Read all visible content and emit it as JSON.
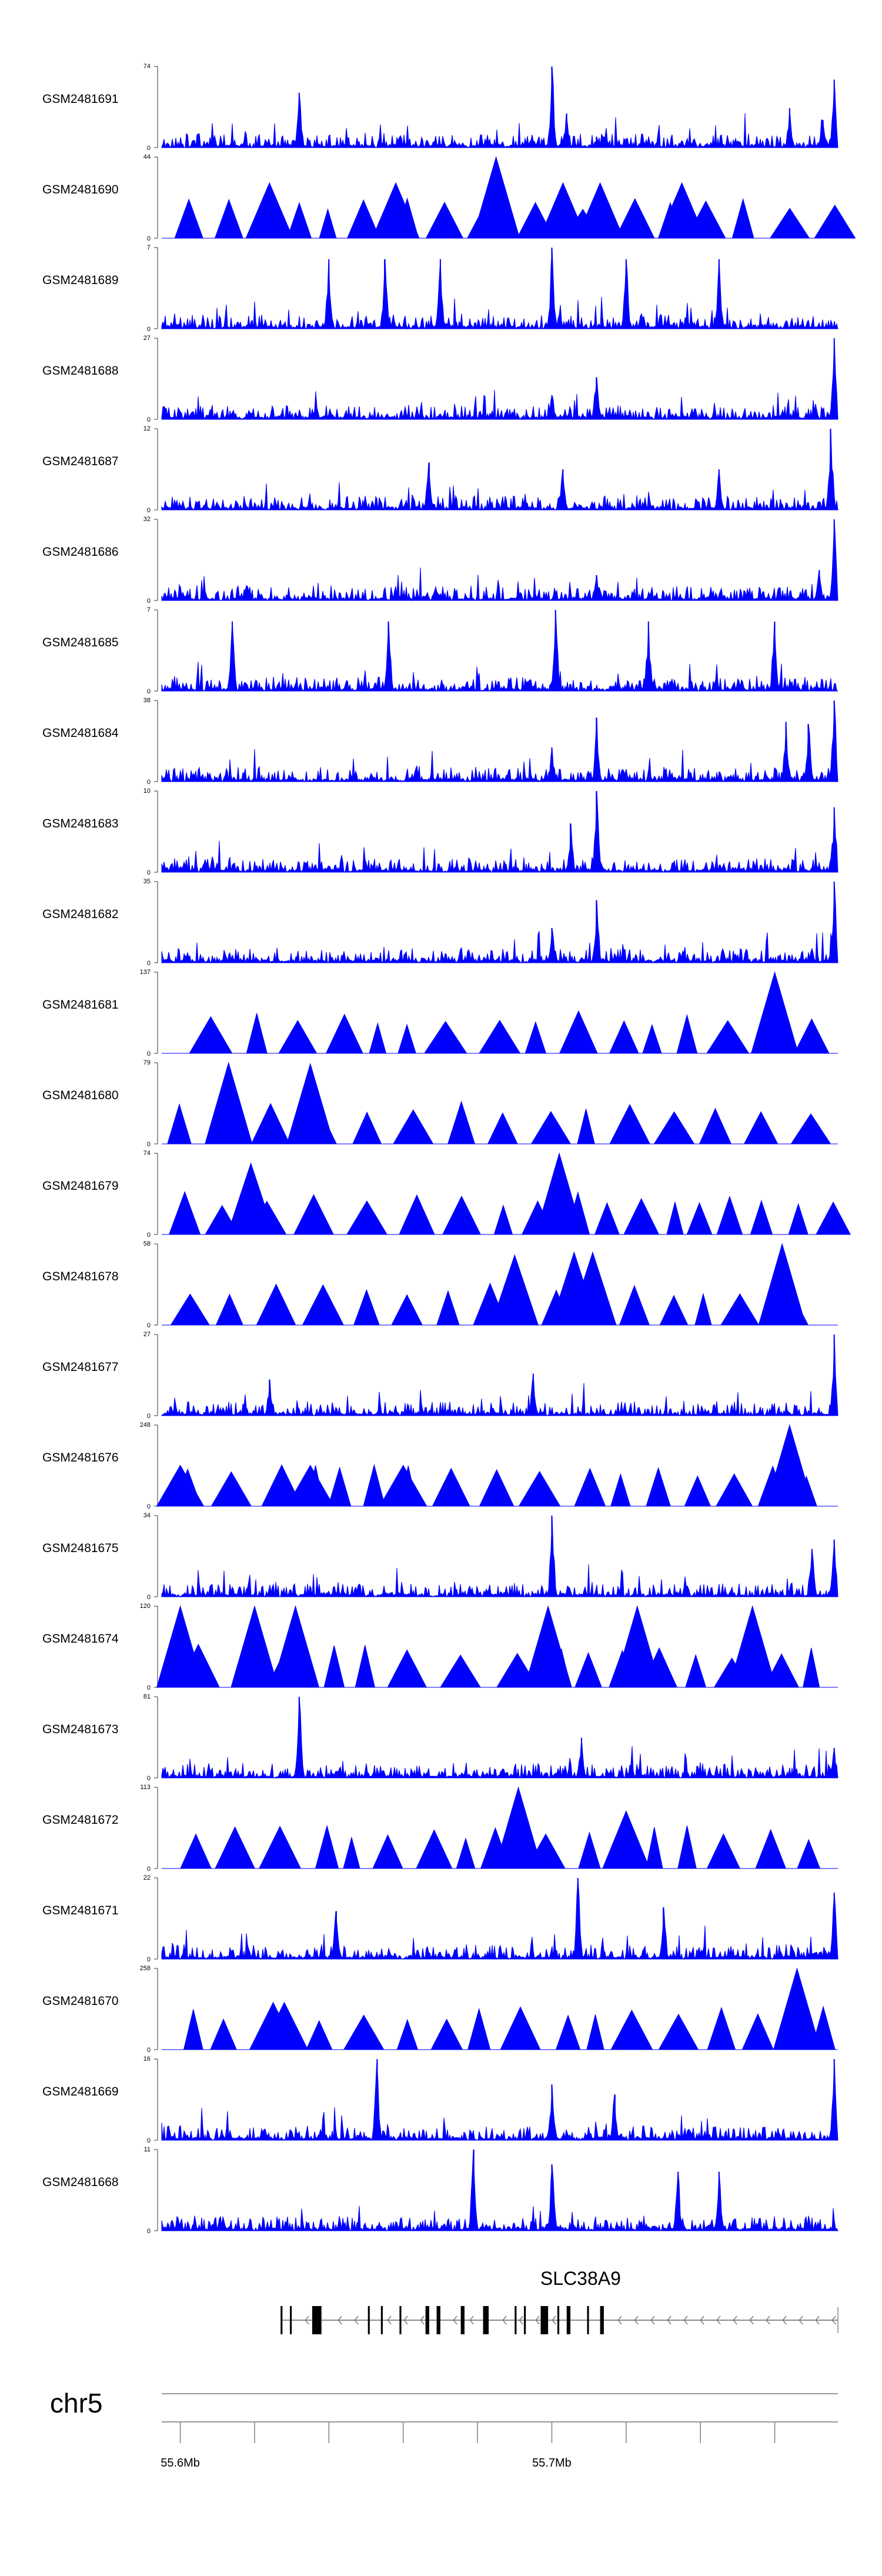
{
  "chart_data": {
    "type": "area",
    "tracks": [
      {
        "name": "GSM2481691",
        "ymax": 74,
        "style": "signal",
        "peaks": [
          [
            55.604,
            3
          ],
          [
            55.625,
            3
          ],
          [
            55.632,
            50
          ],
          [
            55.668,
            5
          ],
          [
            55.674,
            4
          ],
          [
            55.7,
            74
          ],
          [
            55.704,
            31
          ],
          [
            55.712,
            10
          ],
          [
            55.72,
            8
          ],
          [
            55.735,
            4
          ],
          [
            55.75,
            6
          ],
          [
            55.764,
            36
          ],
          [
            55.773,
            25
          ],
          [
            55.776,
            62
          ]
        ]
      },
      {
        "name": "GSM2481690",
        "ymax": 44,
        "style": "triangles",
        "peaks": [
          [
            55.624,
            30
          ],
          [
            55.658,
            30
          ],
          [
            55.685,
            44
          ],
          [
            55.703,
            30
          ],
          [
            55.713,
            30
          ],
          [
            55.735,
            30
          ]
        ]
      },
      {
        "name": "GSM2481689",
        "ymax": 7,
        "style": "signal",
        "peaks": [
          [
            55.64,
            6
          ],
          [
            55.655,
            6
          ],
          [
            55.67,
            6
          ],
          [
            55.7,
            7
          ],
          [
            55.72,
            6
          ],
          [
            55.745,
            6
          ]
        ]
      },
      {
        "name": "GSM2481688",
        "ymax": 27,
        "style": "signal",
        "peaks": [
          [
            55.7,
            8
          ],
          [
            55.712,
            14
          ],
          [
            55.771,
            5
          ],
          [
            55.776,
            27
          ]
        ]
      },
      {
        "name": "GSM2481687",
        "ymax": 12,
        "style": "signal",
        "peaks": [
          [
            55.667,
            7
          ],
          [
            55.703,
            6
          ],
          [
            55.745,
            6
          ],
          [
            55.775,
            12
          ]
        ]
      },
      {
        "name": "GSM2481686",
        "ymax": 32,
        "style": "signal",
        "peaks": [
          [
            55.712,
            10
          ],
          [
            55.772,
            12
          ],
          [
            55.776,
            32
          ]
        ]
      },
      {
        "name": "GSM2481685",
        "ymax": 7,
        "style": "signal",
        "peaks": [
          [
            55.614,
            6
          ],
          [
            55.656,
            6
          ],
          [
            55.701,
            7
          ],
          [
            55.726,
            6
          ],
          [
            55.76,
            6
          ]
        ]
      },
      {
        "name": "GSM2481684",
        "ymax": 38,
        "style": "signal",
        "peaks": [
          [
            55.7,
            16
          ],
          [
            55.712,
            30
          ],
          [
            55.763,
            28
          ],
          [
            55.769,
            27
          ],
          [
            55.776,
            38
          ]
        ]
      },
      {
        "name": "GSM2481683",
        "ymax": 10,
        "style": "signal",
        "peaks": [
          [
            55.705,
            6
          ],
          [
            55.712,
            10
          ],
          [
            55.776,
            8
          ]
        ]
      },
      {
        "name": "GSM2481682",
        "ymax": 35,
        "style": "signal",
        "peaks": [
          [
            55.7,
            15
          ],
          [
            55.712,
            27
          ],
          [
            55.77,
            6
          ],
          [
            55.776,
            35
          ]
        ]
      },
      {
        "name": "GSM2481681",
        "ymax": 137,
        "style": "triangles",
        "peaks": [
          [
            55.76,
            137
          ]
        ]
      },
      {
        "name": "GSM2481680",
        "ymax": 79,
        "style": "triangles",
        "peaks": [
          [
            55.613,
            79
          ],
          [
            55.635,
            78
          ]
        ]
      },
      {
        "name": "GSM2481679",
        "ymax": 74,
        "style": "triangles",
        "peaks": [
          [
            55.619,
            65
          ],
          [
            55.702,
            74
          ]
        ]
      },
      {
        "name": "GSM2481678",
        "ymax": 58,
        "style": "triangles",
        "peaks": [
          [
            55.69,
            50
          ],
          [
            55.706,
            52
          ],
          [
            55.711,
            52
          ],
          [
            55.762,
            58
          ]
        ]
      },
      {
        "name": "GSM2481677",
        "ymax": 27,
        "style": "signal",
        "peaks": [
          [
            55.624,
            12
          ],
          [
            55.695,
            14
          ],
          [
            55.776,
            27
          ]
        ]
      },
      {
        "name": "GSM2481676",
        "ymax": 248,
        "style": "triangles",
        "peaks": [
          [
            55.6,
            125
          ],
          [
            55.635,
            125
          ],
          [
            55.66,
            125
          ],
          [
            55.764,
            248
          ]
        ]
      },
      {
        "name": "GSM2481675",
        "ymax": 34,
        "style": "signal",
        "peaks": [
          [
            55.7,
            34
          ],
          [
            55.77,
            20
          ],
          [
            55.776,
            24
          ]
        ]
      },
      {
        "name": "GSM2481674",
        "ymax": 120,
        "style": "triangles",
        "peaks": [
          [
            55.6,
            120
          ],
          [
            55.62,
            120
          ],
          [
            55.631,
            120
          ],
          [
            55.699,
            120
          ],
          [
            55.723,
            120
          ],
          [
            55.754,
            120
          ]
        ]
      },
      {
        "name": "GSM2481673",
        "ymax": 81,
        "style": "signal",
        "peaks": [
          [
            55.632,
            81
          ],
          [
            55.708,
            40
          ],
          [
            55.776,
            30
          ]
        ]
      },
      {
        "name": "GSM2481672",
        "ymax": 113,
        "style": "triangles",
        "peaks": [
          [
            55.691,
            113
          ],
          [
            55.72,
            80
          ]
        ]
      },
      {
        "name": "GSM2481671",
        "ymax": 22,
        "style": "signal",
        "peaks": [
          [
            55.642,
            13
          ],
          [
            55.707,
            22
          ],
          [
            55.73,
            14
          ],
          [
            55.776,
            18
          ]
        ]
      },
      {
        "name": "GSM2481670",
        "ymax": 258,
        "style": "triangles",
        "peaks": [
          [
            55.625,
            150
          ],
          [
            55.628,
            150
          ],
          [
            55.766,
            258
          ]
        ]
      },
      {
        "name": "GSM2481669",
        "ymax": 16,
        "style": "signal",
        "peaks": [
          [
            55.653,
            16
          ],
          [
            55.7,
            11
          ],
          [
            55.717,
            9
          ],
          [
            55.776,
            16
          ]
        ]
      },
      {
        "name": "GSM2481668",
        "ymax": 11,
        "style": "signal",
        "peaks": [
          [
            55.679,
            11
          ],
          [
            55.7,
            9
          ],
          [
            55.734,
            8
          ],
          [
            55.745,
            8
          ]
        ]
      }
    ],
    "gene": {
      "name": "SLC38A9",
      "start": 55.627,
      "end": 55.779,
      "strand": "-",
      "exons": [
        [
          55.627,
          55.6275
        ],
        [
          55.6295,
          55.63
        ],
        [
          55.6355,
          55.638
        ],
        [
          55.6505,
          55.651
        ],
        [
          55.654,
          55.6545
        ],
        [
          55.659,
          55.6595
        ],
        [
          55.666,
          55.667
        ],
        [
          55.669,
          55.67
        ],
        [
          55.6755,
          55.6765
        ],
        [
          55.6815,
          55.683
        ],
        [
          55.69,
          55.6905
        ],
        [
          55.6925,
          55.693
        ],
        [
          55.697,
          55.699
        ],
        [
          55.7015,
          55.702
        ],
        [
          55.704,
          55.705
        ],
        [
          55.7095,
          55.71
        ],
        [
          55.713,
          55.714
        ]
      ]
    },
    "chrom": "chr5",
    "xlim": [
      55.595,
      55.777
    ],
    "ticks": [
      55.6,
      55.62,
      55.64,
      55.66,
      55.68,
      55.7,
      55.72,
      55.74,
      55.76
    ],
    "tick_labels": [
      {
        "pos": 55.6,
        "label": "55.6Mb"
      },
      {
        "pos": 55.7,
        "label": "55.7Mb"
      }
    ],
    "color": "#0000ff"
  }
}
